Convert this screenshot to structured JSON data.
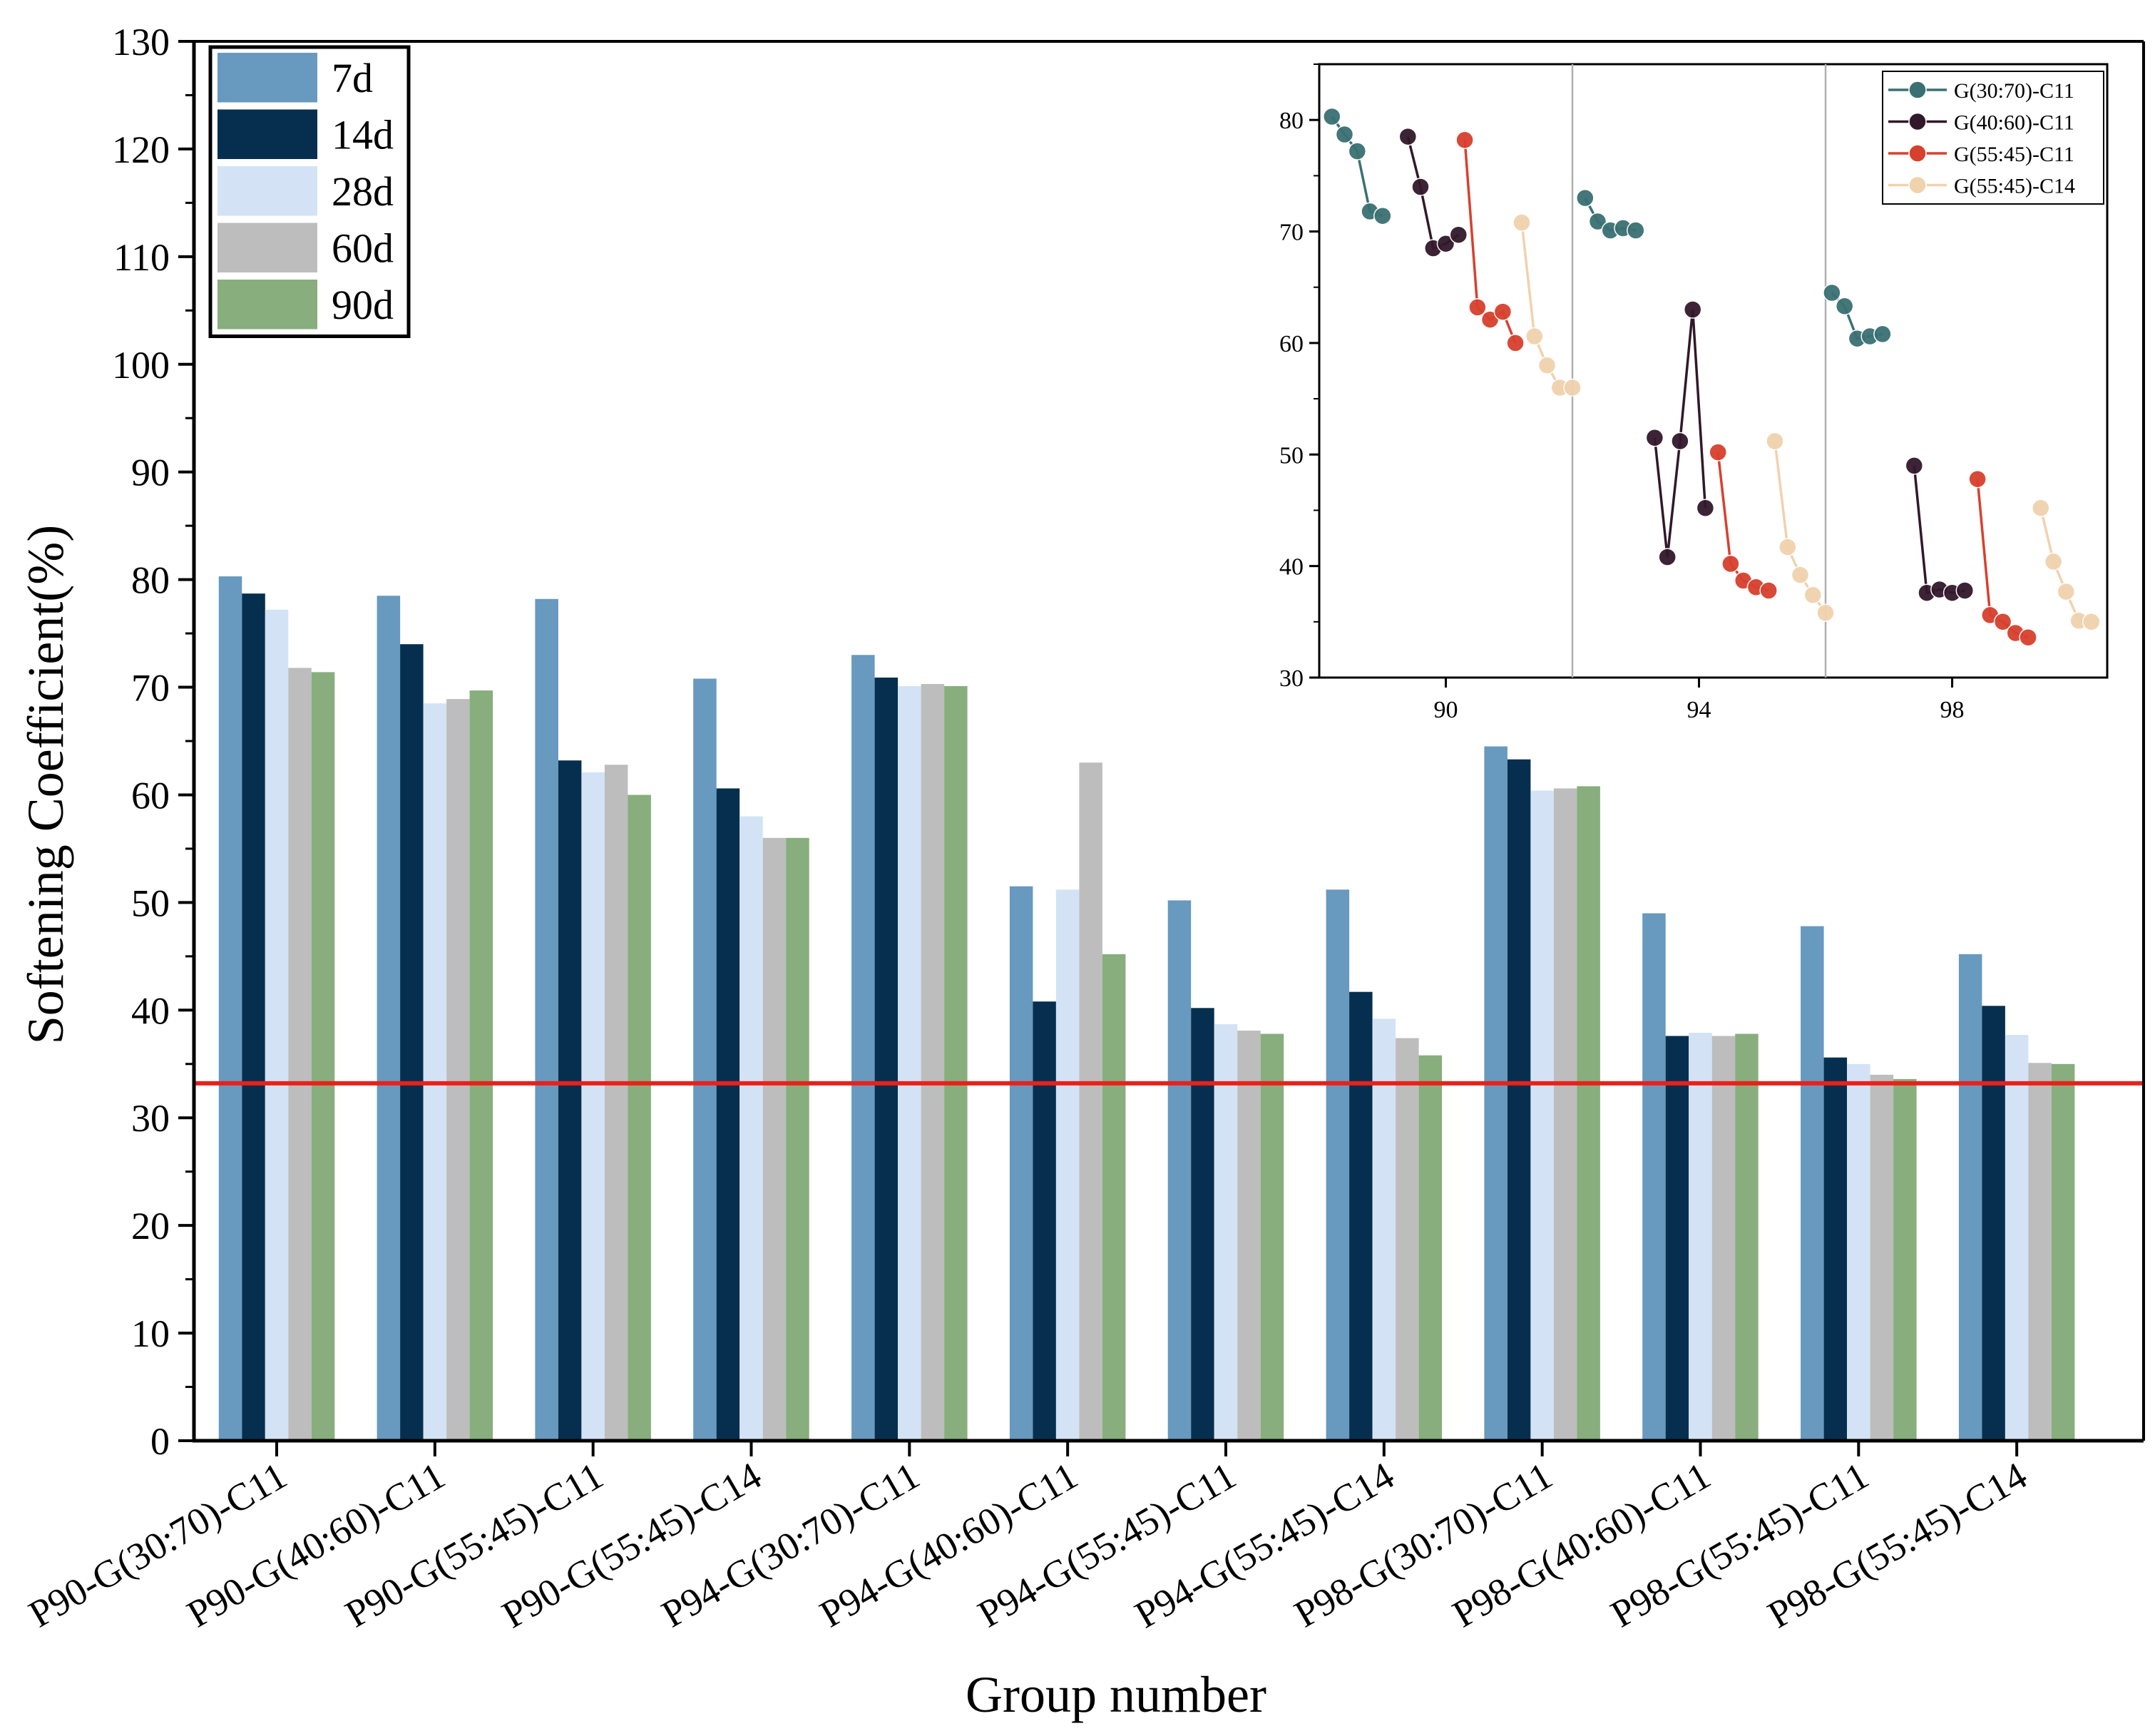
{
  "chart_data": [
    {
      "type": "bar",
      "title": "",
      "xlabel": "Group number",
      "ylabel": "Softening Coefficient(%)",
      "ylim": [
        0,
        130
      ],
      "yticks": [
        "0",
        "10",
        "20",
        "30",
        "40",
        "50",
        "60",
        "70",
        "80",
        "90",
        "100",
        "110",
        "120",
        "130"
      ],
      "categories": [
        "P90-G(30:70)-C11",
        "P90-G(40:60)-C11",
        "P90-G(55:45)-C11",
        "P90-G(55:45)-C14",
        "P94-G(30:70)-C11",
        "P94-G(40:60)-C11",
        "P94-G(55:45)-C11",
        "P94-G(55:45)-C14",
        "P98-G(30:70)-C11",
        "P98-G(40:60)-C11",
        "P98-G(55:45)-C11",
        "P98-G(55:45)-C14"
      ],
      "series": [
        {
          "name": "7d",
          "color": "#6899bf",
          "values": [
            80.3,
            78.5,
            78.2,
            70.8,
            73.0,
            51.5,
            50.2,
            51.2,
            64.5,
            49.0,
            47.8,
            45.2
          ]
        },
        {
          "name": "14d",
          "color": "#062f4f",
          "values": [
            78.7,
            74.0,
            63.2,
            60.6,
            70.9,
            40.8,
            40.2,
            41.7,
            63.3,
            37.6,
            35.6,
            40.4
          ]
        },
        {
          "name": "28d",
          "color": "#d3e3f5",
          "values": [
            77.2,
            68.5,
            62.1,
            58.0,
            70.1,
            51.2,
            38.7,
            39.2,
            60.4,
            37.9,
            35.0,
            37.7
          ]
        },
        {
          "name": "60d",
          "color": "#bdbdbd",
          "values": [
            71.8,
            68.9,
            62.8,
            56.0,
            70.3,
            63.0,
            38.1,
            37.4,
            60.6,
            37.6,
            34.0,
            35.1
          ]
        },
        {
          "name": "90d",
          "color": "#87ae7c",
          "values": [
            71.4,
            69.7,
            60.0,
            56.0,
            70.1,
            45.2,
            37.8,
            35.8,
            60.8,
            37.8,
            33.6,
            35.0
          ]
        }
      ],
      "reference_line": {
        "value": 33.2,
        "color": "#e8211b"
      },
      "legend_position": "top-left"
    },
    {
      "type": "line",
      "title": "",
      "xlabel": "",
      "ylabel": "",
      "ylim": [
        30,
        85
      ],
      "yticks": [
        "30",
        "40",
        "50",
        "60",
        "70",
        "80"
      ],
      "xticks": [
        "90",
        "94",
        "98"
      ],
      "separators": [
        92,
        96
      ],
      "series": [
        {
          "name": "G(30:70)-C11",
          "color": "#3a7073",
          "x": [
            88.2,
            88.4,
            88.6,
            88.8,
            89.0
          ],
          "values": [
            80.3,
            78.7,
            77.2,
            71.8,
            71.4
          ]
        },
        {
          "name": "G(40:60)-C11",
          "color": "#32182b",
          "x": [
            89.4,
            89.6,
            89.8,
            90.0,
            90.2
          ],
          "values": [
            78.5,
            74.0,
            68.5,
            68.9,
            69.7
          ]
        },
        {
          "name": "G(55:45)-C11",
          "color": "#d8402e",
          "x": [
            90.3,
            90.5,
            90.7,
            90.9,
            91.1
          ],
          "values": [
            78.2,
            63.2,
            62.1,
            62.8,
            60.0
          ]
        },
        {
          "name": "G(55:45)-C14",
          "color": "#f0d2ad",
          "x": [
            91.2,
            91.4,
            91.6,
            91.8,
            92.0
          ],
          "values": [
            70.8,
            60.6,
            58.0,
            56.0,
            56.0
          ]
        },
        {
          "name": "G(30:70)-C11",
          "color": "#3a7073",
          "x": [
            92.2,
            92.4,
            92.6,
            92.8,
            93.0
          ],
          "values": [
            73.0,
            70.9,
            70.1,
            70.3,
            70.1
          ]
        },
        {
          "name": "G(40:60)-C11",
          "color": "#32182b",
          "x": [
            93.3,
            93.5,
            93.7,
            93.9,
            94.1
          ],
          "values": [
            51.5,
            40.8,
            51.2,
            63.0,
            45.2
          ]
        },
        {
          "name": "G(55:45)-C11",
          "color": "#d8402e",
          "x": [
            94.3,
            94.5,
            94.7,
            94.9,
            95.1
          ],
          "values": [
            50.2,
            40.2,
            38.7,
            38.1,
            37.8
          ]
        },
        {
          "name": "G(55:45)-C14",
          "color": "#f0d2ad",
          "x": [
            95.2,
            95.4,
            95.6,
            95.8,
            96.0
          ],
          "values": [
            51.2,
            41.7,
            39.2,
            37.4,
            35.8
          ]
        },
        {
          "name": "G(30:70)-C11",
          "color": "#3a7073",
          "x": [
            96.1,
            96.3,
            96.5,
            96.7,
            96.9
          ],
          "values": [
            64.5,
            63.3,
            60.4,
            60.6,
            60.8
          ]
        },
        {
          "name": "G(40:60)-C11",
          "color": "#32182b",
          "x": [
            97.4,
            97.6,
            97.8,
            98.0,
            98.2
          ],
          "values": [
            49.0,
            37.6,
            37.9,
            37.6,
            37.8
          ]
        },
        {
          "name": "G(55:45)-C11",
          "color": "#d8402e",
          "x": [
            98.4,
            98.6,
            98.8,
            99.0,
            99.2
          ],
          "values": [
            47.8,
            35.6,
            35.0,
            34.0,
            33.6
          ]
        },
        {
          "name": "G(55:45)-C14",
          "color": "#f0d2ad",
          "x": [
            99.4,
            99.6,
            99.8,
            100.0,
            100.2
          ],
          "values": [
            45.2,
            40.4,
            37.7,
            35.1,
            35.0
          ]
        }
      ],
      "legend": [
        {
          "name": "G(30:70)-C11",
          "color": "#3a7073"
        },
        {
          "name": "G(40:60)-C11",
          "color": "#32182b"
        },
        {
          "name": "G(55:45)-C11",
          "color": "#d8402e"
        },
        {
          "name": "G(55:45)-C14",
          "color": "#f0d2ad"
        }
      ],
      "legend_position": "top-right"
    }
  ]
}
